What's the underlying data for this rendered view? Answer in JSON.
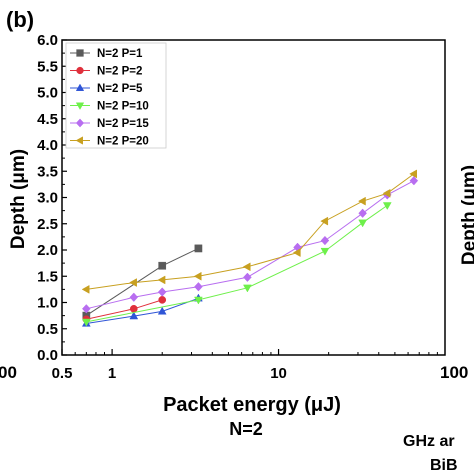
{
  "panel_label": "(b)",
  "caption": "N=2",
  "partial_texts": {
    "left_tick": "00",
    "right_tick": "100",
    "right_ylabel": "Depth (μm)",
    "bottom_line1": "GHz ar",
    "bottom_line2": "BiB"
  },
  "colors": {
    "P=1": "#5a5a5a",
    "P=2": "#e0303c",
    "P=5": "#2f55d6",
    "P=10": "#6ef04a",
    "P=15": "#b86ef0",
    "P=20": "#c8a020"
  },
  "chart_data": {
    "type": "line",
    "title": "",
    "xlabel": "Packet energy (μJ)",
    "ylabel": "Depth (μm)",
    "xscale": "log",
    "xlim": [
      0.5,
      100
    ],
    "ylim": [
      0.0,
      6.0
    ],
    "xticks": [
      {
        "value": 0.5,
        "label": "0.5"
      },
      {
        "value": 1,
        "label": "1"
      },
      {
        "value": 10,
        "label": "10"
      }
    ],
    "yticks": [
      "0.0",
      "0.5",
      "1.0",
      "1.5",
      "2.0",
      "2.5",
      "3.0",
      "3.5",
      "4.0",
      "4.5",
      "5.0",
      "5.5",
      "6.0"
    ],
    "grid": false,
    "legend_position": "top-left",
    "series": [
      {
        "name": "N=2 P=1",
        "marker": "square",
        "color": "#5a5a5a",
        "x": [
          0.7,
          2.0,
          3.3
        ],
        "y": [
          0.75,
          1.7,
          2.03
        ]
      },
      {
        "name": "N=2 P=2",
        "marker": "circle",
        "color": "#e0303c",
        "x": [
          0.7,
          1.35,
          2.0
        ],
        "y": [
          0.68,
          0.88,
          1.05
        ]
      },
      {
        "name": "N=2 P=5",
        "marker": "triangle-up",
        "color": "#2f55d6",
        "x": [
          0.7,
          1.35,
          2.0,
          3.3
        ],
        "y": [
          0.6,
          0.74,
          0.83,
          1.08
        ]
      },
      {
        "name": "N=2 P=10",
        "marker": "triangle-down",
        "color": "#6ef04a",
        "x": [
          0.7,
          3.3,
          6.5,
          19,
          32,
          45
        ],
        "y": [
          0.63,
          1.05,
          1.28,
          1.98,
          2.52,
          2.85
        ]
      },
      {
        "name": "N=2 P=15",
        "marker": "diamond",
        "color": "#b86ef0",
        "x": [
          0.7,
          1.35,
          2.0,
          3.3,
          6.5,
          13,
          19,
          32,
          45,
          65
        ],
        "y": [
          0.88,
          1.1,
          1.2,
          1.3,
          1.48,
          2.05,
          2.18,
          2.7,
          3.05,
          3.32
        ]
      },
      {
        "name": "N=2 P=20",
        "marker": "triangle-left",
        "color": "#c8a020",
        "x": [
          0.7,
          1.35,
          2.0,
          3.3,
          6.5,
          13,
          19,
          32,
          45,
          65
        ],
        "y": [
          1.25,
          1.38,
          1.43,
          1.5,
          1.68,
          1.95,
          2.55,
          2.93,
          3.08,
          3.45
        ]
      }
    ]
  }
}
